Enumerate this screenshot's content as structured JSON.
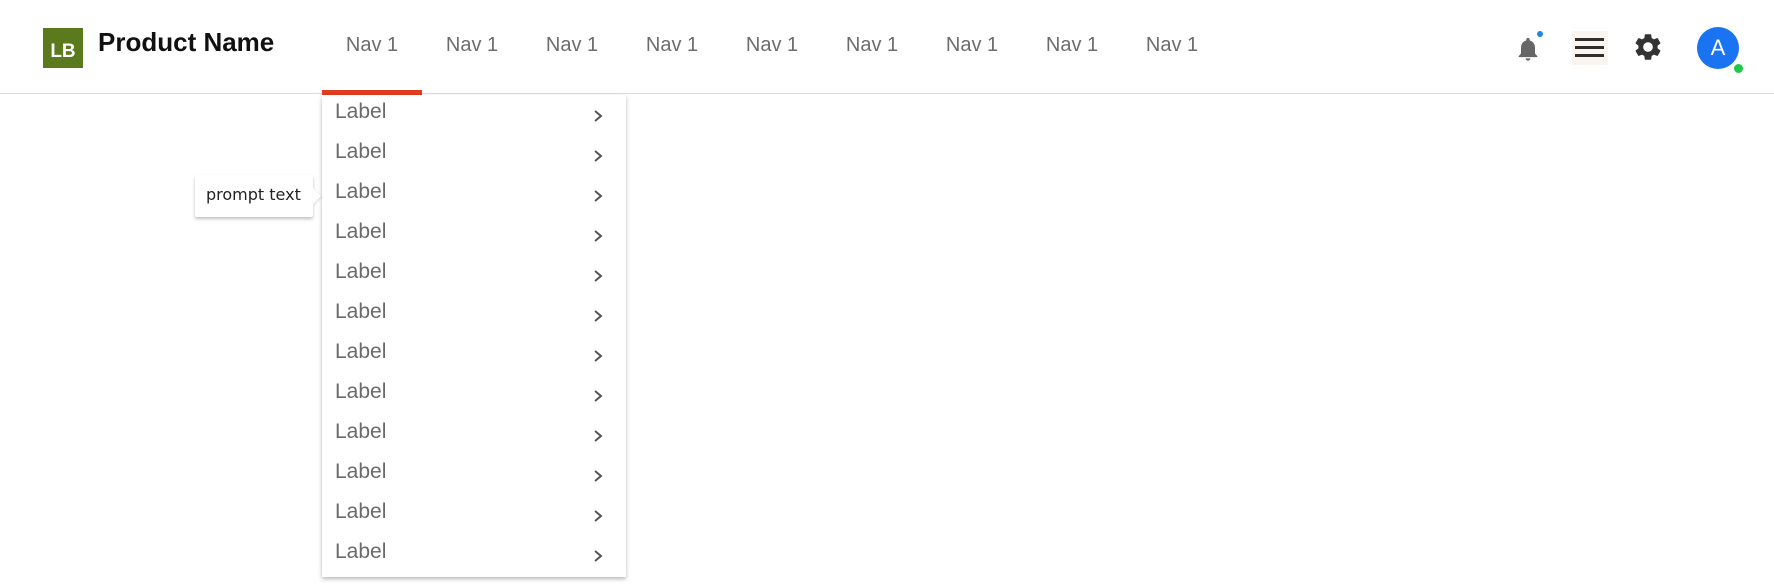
{
  "header": {
    "logo_text": "LB",
    "product_name": "Product Name",
    "nav": [
      {
        "label": "Nav 1",
        "active": true
      },
      {
        "label": "Nav 1"
      },
      {
        "label": "Nav 1"
      },
      {
        "label": "Nav 1"
      },
      {
        "label": "Nav 1"
      },
      {
        "label": "Nav 1"
      },
      {
        "label": "Nav 1"
      },
      {
        "label": "Nav 1"
      },
      {
        "label": "Nav 1"
      }
    ],
    "avatar_initial": "A",
    "icons": [
      "bell-icon",
      "hamburger-menu-icon",
      "gear-icon"
    ]
  },
  "dropdown": {
    "items": [
      {
        "label": "Label"
      },
      {
        "label": "Label"
      },
      {
        "label": "Label"
      },
      {
        "label": "Label"
      },
      {
        "label": "Label"
      },
      {
        "label": "Label"
      },
      {
        "label": "Label"
      },
      {
        "label": "Label"
      },
      {
        "label": "Label"
      },
      {
        "label": "Label"
      },
      {
        "label": "Label"
      },
      {
        "label": "Label"
      }
    ]
  },
  "tooltip": {
    "text": "prompt text"
  },
  "colors": {
    "logo_bg": "#5b7a1e",
    "active_underline": "#e23c1c",
    "avatar_bg": "#1a73f0",
    "online_status": "#1ec94a",
    "notification_dot": "#1e88e5"
  }
}
